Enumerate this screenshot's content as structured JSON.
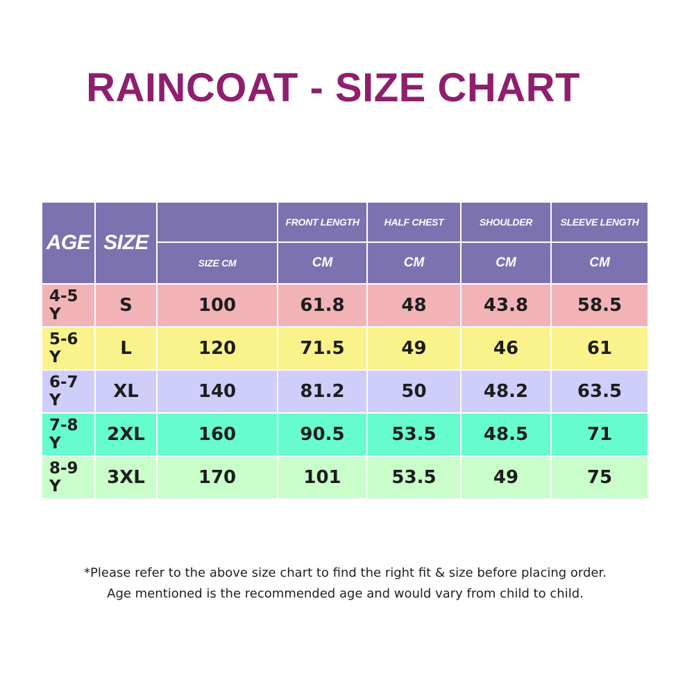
{
  "title": "RAINCOAT - SIZE CHART",
  "table": {
    "headers": {
      "age": "AGE",
      "size": "SIZE",
      "size_cm": "SIZE CM",
      "front_length": "FRONT LENGTH",
      "half_chest": "HALF CHEST",
      "shoulder": "SHOULDER",
      "sleeve_length": "SLEEVE LENGTH",
      "unit": "CM"
    },
    "rows": [
      {
        "age": "4-5 Y",
        "size": "S",
        "size_cm": "100",
        "front_length": "61.8",
        "half_chest": "48",
        "shoulder": "43.8",
        "sleeve_length": "58.5",
        "color": "#f2b3b6"
      },
      {
        "age": "5-6 Y",
        "size": "L",
        "size_cm": "120",
        "front_length": "71.5",
        "half_chest": "49",
        "shoulder": "46",
        "sleeve_length": "61",
        "color": "#faf28a"
      },
      {
        "age": "6-7 Y",
        "size": "XL",
        "size_cm": "140",
        "front_length": "81.2",
        "half_chest": "50",
        "shoulder": "48.2",
        "sleeve_length": "63.5",
        "color": "#cfcdfa"
      },
      {
        "age": "7-8 Y",
        "size": "2XL",
        "size_cm": "160",
        "front_length": "90.5",
        "half_chest": "53.5",
        "shoulder": "48.5",
        "sleeve_length": "71",
        "color": "#66fccd"
      },
      {
        "age": "8-9 Y",
        "size": "3XL",
        "size_cm": "170",
        "front_length": "101",
        "half_chest": "53.5",
        "shoulder": "49",
        "sleeve_length": "75",
        "color": "#c9fdc9"
      }
    ]
  },
  "footnote": {
    "line1": "*Please refer to the above size chart to find the right fit & size before placing order.",
    "line2": "Age mentioned is the recommended age and would vary from child to child."
  },
  "colors": {
    "title": "#8e1f6e",
    "header_bg": "#7d72b0",
    "header_text": "#ffffff"
  }
}
